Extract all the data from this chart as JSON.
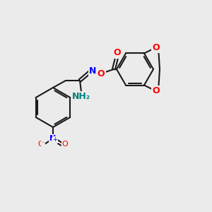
{
  "background_color": "#ebebeb",
  "bond_color": "#1a1a1a",
  "bond_lw": 1.5,
  "atom_colors": {
    "N": "#0000ff",
    "O": "#ff0000",
    "N_amidine": "#008080",
    "N_imine": "#0000ff"
  }
}
